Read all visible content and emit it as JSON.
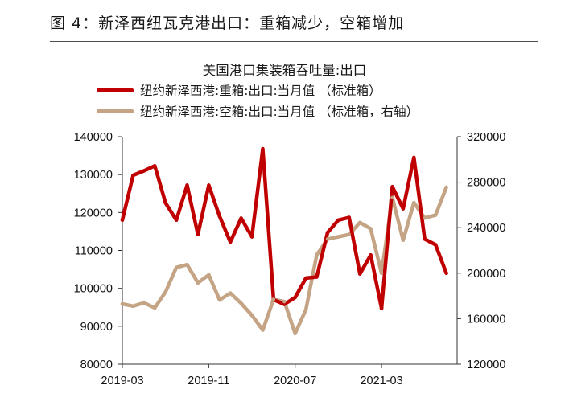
{
  "figure_title": "图 4：新泽西纽瓦克港出口：重箱减少，空箱增加",
  "colors": {
    "red_series": "#C00000",
    "tan_series": "#C4A484",
    "axis": "#333333"
  },
  "chart_data": {
    "type": "line",
    "title": "美国港口集装箱吞吐量:出口",
    "x_tick_labels": [
      "2019-03",
      "2019-11",
      "2020-07",
      "2021-03"
    ],
    "x": [
      "2019-03",
      "2019-04",
      "2019-05",
      "2019-06",
      "2019-07",
      "2019-08",
      "2019-09",
      "2019-10",
      "2019-11",
      "2019-12",
      "2020-01",
      "2020-02",
      "2020-03",
      "2020-04",
      "2020-05",
      "2020-06",
      "2020-07",
      "2020-08",
      "2020-09",
      "2020-10",
      "2020-11",
      "2020-12",
      "2021-01",
      "2021-02",
      "2021-03",
      "2021-04",
      "2021-05",
      "2021-06",
      "2021-07",
      "2021-08",
      "2021-09",
      "2021-10"
    ],
    "y_left_ticks": [
      "140000",
      "130000",
      "120000",
      "110000",
      "100000",
      "90000",
      "80000"
    ],
    "y_right_ticks": [
      "320000",
      "280000",
      "240000",
      "200000",
      "160000",
      "120000"
    ],
    "y_left_range": [
      80000,
      140000
    ],
    "y_right_range": [
      120000,
      320000
    ],
    "series": [
      {
        "name": "纽约新泽西港:重箱:出口:当月值 （标准箱）",
        "axis": "left",
        "color": "#C00000",
        "values": [
          118000,
          129800,
          131000,
          132300,
          122500,
          118000,
          127200,
          114200,
          127200,
          119000,
          112200,
          118500,
          113600,
          136800,
          97000,
          95800,
          97600,
          102700,
          103000,
          114700,
          118000,
          118700,
          103800,
          108800,
          94700,
          126800,
          121000,
          134500,
          113000,
          111500,
          104000,
          null
        ]
      },
      {
        "name": "纽约新泽西港:空箱:出口:当月值 （标准箱，右轴）",
        "axis": "right",
        "color": "#C4A484",
        "values": [
          173000,
          171000,
          174000,
          169500,
          183500,
          205000,
          207500,
          191500,
          198500,
          176500,
          182500,
          173500,
          163000,
          150000,
          177000,
          175000,
          147000,
          168000,
          216000,
          230000,
          232000,
          234000,
          244500,
          239000,
          200000,
          266500,
          229000,
          262000,
          248500,
          251000,
          275500,
          null
        ]
      }
    ]
  }
}
